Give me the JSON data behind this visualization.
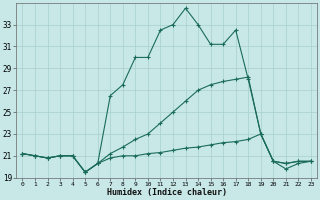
{
  "xlabel": "Humidex (Indice chaleur)",
  "background_color": "#c8e8e8",
  "grid_color": "#a8d0cc",
  "line_color": "#1a6b5a",
  "x_values": [
    0,
    1,
    2,
    3,
    4,
    5,
    6,
    7,
    8,
    9,
    10,
    11,
    12,
    13,
    14,
    15,
    16,
    17,
    18,
    19,
    20,
    21,
    22,
    23
  ],
  "line1": [
    21.2,
    21.0,
    20.8,
    21.0,
    21.0,
    19.5,
    20.3,
    26.5,
    27.5,
    30.0,
    30.0,
    32.5,
    33.0,
    34.5,
    33.0,
    31.2,
    31.2,
    32.5,
    28.0,
    23.0,
    20.5,
    20.3,
    20.5,
    20.5
  ],
  "line2": [
    21.2,
    21.0,
    20.8,
    21.0,
    21.0,
    19.5,
    20.3,
    21.2,
    21.8,
    22.5,
    23.0,
    24.0,
    25.0,
    26.0,
    27.0,
    27.5,
    27.8,
    28.0,
    28.2,
    23.0,
    20.5,
    20.3,
    20.5,
    20.5
  ],
  "line3": [
    21.2,
    21.0,
    20.8,
    21.0,
    21.0,
    19.5,
    20.3,
    20.8,
    21.0,
    21.0,
    21.2,
    21.3,
    21.5,
    21.7,
    21.8,
    22.0,
    22.2,
    22.3,
    22.5,
    23.0,
    20.5,
    19.8,
    20.3,
    20.5
  ],
  "xlim": [
    -0.5,
    23.5
  ],
  "ylim": [
    19,
    35
  ],
  "yticks": [
    19,
    21,
    23,
    25,
    27,
    29,
    31,
    33
  ],
  "xticks": [
    0,
    1,
    2,
    3,
    4,
    5,
    6,
    7,
    8,
    9,
    10,
    11,
    12,
    13,
    14,
    15,
    16,
    17,
    18,
    19,
    20,
    21,
    22,
    23
  ]
}
